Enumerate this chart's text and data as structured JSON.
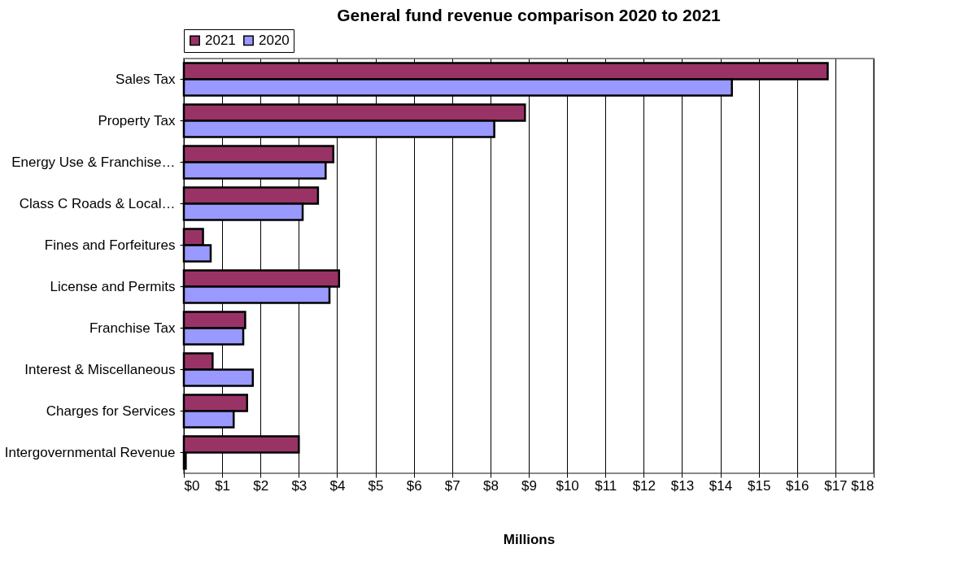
{
  "chart_data": {
    "type": "bar",
    "orientation": "horizontal",
    "title": "General fund revenue comparison 2020 to 2021",
    "xlabel": "Millions",
    "categories": [
      "Sales Tax",
      "Property Tax",
      "Energy Use & Franchise…",
      "Class C Roads & Local…",
      "Fines and Forfeitures",
      "License and Permits",
      "Franchise Tax",
      "Interest & Miscellaneous",
      "Charges for Services",
      "Intergovernmental Revenue"
    ],
    "series": [
      {
        "name": "2021",
        "color": "#993366",
        "values": [
          16.8,
          8.9,
          3.9,
          3.5,
          0.5,
          4.05,
          1.6,
          0.75,
          1.65,
          3.0
        ]
      },
      {
        "name": "2020",
        "color": "#9999ff",
        "values": [
          14.3,
          8.1,
          3.7,
          3.1,
          0.7,
          3.8,
          1.55,
          1.8,
          1.3,
          0.05
        ]
      }
    ],
    "xlim": [
      0,
      18
    ],
    "xticks": [
      {
        "value": 0,
        "label": "$0"
      },
      {
        "value": 1,
        "label": "$1"
      },
      {
        "value": 2,
        "label": "$2"
      },
      {
        "value": 3,
        "label": "$3"
      },
      {
        "value": 4,
        "label": "$4"
      },
      {
        "value": 5,
        "label": "$5"
      },
      {
        "value": 6,
        "label": "$6"
      },
      {
        "value": 7,
        "label": "$7"
      },
      {
        "value": 8,
        "label": "$8"
      },
      {
        "value": 9,
        "label": "$9"
      },
      {
        "value": 10,
        "label": "$10"
      },
      {
        "value": 11,
        "label": "$11"
      },
      {
        "value": 12,
        "label": "$12"
      },
      {
        "value": 13,
        "label": "$13"
      },
      {
        "value": 14,
        "label": "$14"
      },
      {
        "value": 15,
        "label": "$15"
      },
      {
        "value": 16,
        "label": "$16"
      },
      {
        "value": 17,
        "label": "$17"
      },
      {
        "value": 18,
        "label": "$18"
      }
    ],
    "grid": "x",
    "legend": "top"
  }
}
